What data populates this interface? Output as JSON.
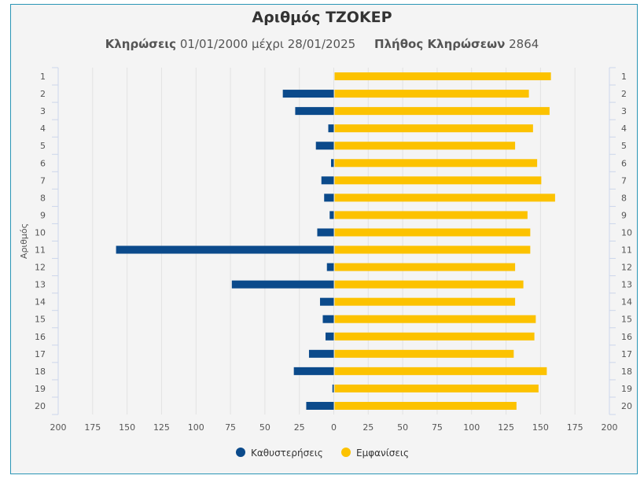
{
  "chart_data": {
    "type": "bar",
    "orientation": "horizontal-butterfly",
    "title": "Αριθμός ΤΖΟΚΕΡ",
    "subtitle": {
      "draws_label": "Κληρώσεις",
      "date_range": "01/01/2000 μέχρι 28/01/2025",
      "count_label": "Πλήθος Κληρώσεων",
      "count": "2864"
    },
    "ylabel": "Αριθμός",
    "xlim": [
      -200,
      200
    ],
    "xticks": [
      "200",
      "175",
      "150",
      "125",
      "100",
      "75",
      "50",
      "25",
      "0",
      "25",
      "50",
      "75",
      "100",
      "125",
      "150",
      "175",
      "200"
    ],
    "categories": [
      "1",
      "2",
      "3",
      "4",
      "5",
      "6",
      "7",
      "8",
      "9",
      "10",
      "11",
      "12",
      "13",
      "14",
      "15",
      "16",
      "17",
      "18",
      "19",
      "20"
    ],
    "series": [
      {
        "name": "Καθυστερήσεις",
        "color": "#0b4a8b",
        "direction": "left",
        "values": [
          0,
          37,
          28,
          4,
          13,
          2,
          9,
          7,
          3,
          12,
          158,
          5,
          74,
          10,
          8,
          6,
          18,
          29,
          1,
          20
        ]
      },
      {
        "name": "Εμφανίσεις",
        "color": "#fcc200",
        "direction": "right",
        "values": [
          157,
          141,
          156,
          144,
          131,
          147,
          150,
          160,
          140,
          142,
          142,
          131,
          137,
          131,
          146,
          145,
          130,
          154,
          148,
          132
        ]
      }
    ],
    "grid": true,
    "legend": "bottom-center"
  }
}
